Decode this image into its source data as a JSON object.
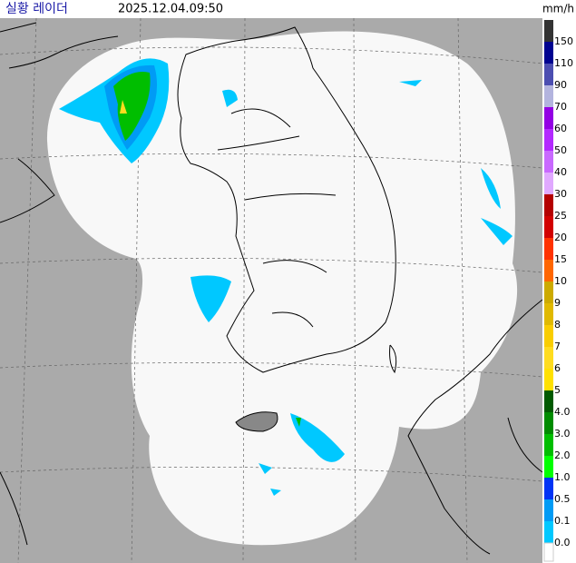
{
  "header": {
    "title": "실황 레이더",
    "time": "2025.12.04.09:50",
    "unit": "mm/h"
  },
  "legend": [
    {
      "label": "150",
      "color": "#333333"
    },
    {
      "label": "110",
      "color": "#000390"
    },
    {
      "label": "90",
      "color": "#4c4eb1"
    },
    {
      "label": "70",
      "color": "#b3b4de"
    },
    {
      "label": "60",
      "color": "#9300e4"
    },
    {
      "label": "50",
      "color": "#b329ff"
    },
    {
      "label": "40",
      "color": "#c969ff"
    },
    {
      "label": "30",
      "color": "#e0a9ff"
    },
    {
      "label": "25",
      "color": "#b40000"
    },
    {
      "label": "20",
      "color": "#d20000"
    },
    {
      "label": "15",
      "color": "#ff3200"
    },
    {
      "label": "10",
      "color": "#ff6600"
    },
    {
      "label": "9",
      "color": "#ccaa00"
    },
    {
      "label": "8",
      "color": "#e0b900"
    },
    {
      "label": "7",
      "color": "#f9cd00"
    },
    {
      "label": "6",
      "color": "#ffdc1f"
    },
    {
      "label": "5",
      "color": "#ffe100"
    },
    {
      "label": "4.0",
      "color": "#005a00"
    },
    {
      "label": "3.0",
      "color": "#008c00"
    },
    {
      "label": "2.0",
      "color": "#00be00"
    },
    {
      "label": "1.0",
      "color": "#00ff00"
    },
    {
      "label": "0.5",
      "color": "#0033f5"
    },
    {
      "label": "0.1",
      "color": "#009bf5"
    },
    {
      "label": "0.0",
      "color": "#00c8ff"
    }
  ]
}
